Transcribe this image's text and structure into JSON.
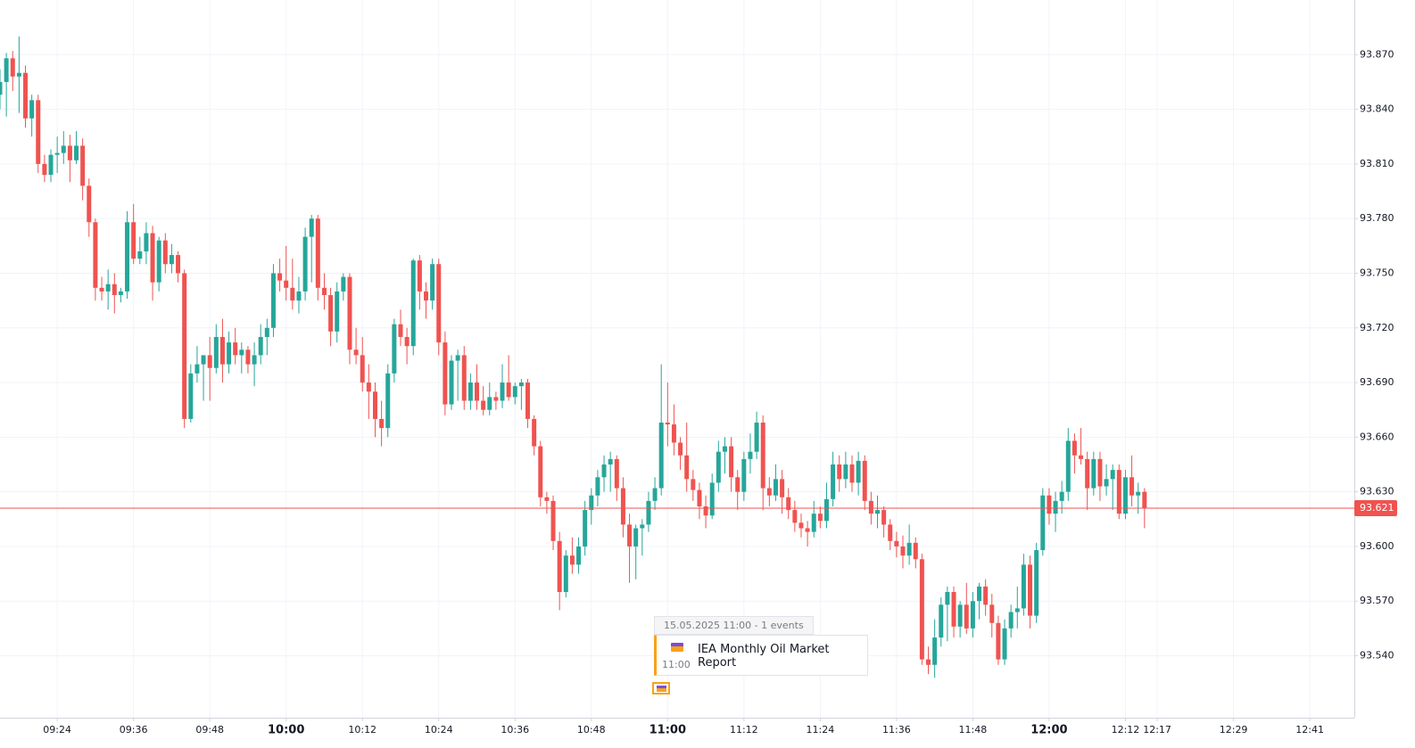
{
  "chart_data": {
    "type": "candlestick",
    "up_color": "#26a69a",
    "down_color": "#ef5350",
    "grid": true,
    "x": [
      "09:15",
      "09:16",
      "09:17",
      "09:18",
      "09:19",
      "09:20",
      "09:21",
      "09:22",
      "09:23",
      "09:24",
      "09:25",
      "09:26",
      "09:27",
      "09:28",
      "09:29",
      "09:30",
      "09:31",
      "09:32",
      "09:33",
      "09:34",
      "09:35",
      "09:36",
      "09:37",
      "09:38",
      "09:39",
      "09:40",
      "09:41",
      "09:42",
      "09:43",
      "09:44",
      "09:45",
      "09:46",
      "09:47",
      "09:48",
      "09:49",
      "09:50",
      "09:51",
      "09:52",
      "09:53",
      "09:54",
      "09:55",
      "09:56",
      "09:57",
      "09:58",
      "09:59",
      "10:00",
      "10:01",
      "10:02",
      "10:03",
      "10:04",
      "10:05",
      "10:06",
      "10:07",
      "10:08",
      "10:09",
      "10:10",
      "10:11",
      "10:12",
      "10:13",
      "10:14",
      "10:15",
      "10:16",
      "10:17",
      "10:18",
      "10:19",
      "10:20",
      "10:21",
      "10:22",
      "10:23",
      "10:24",
      "10:25",
      "10:26",
      "10:27",
      "10:28",
      "10:29",
      "10:30",
      "10:31",
      "10:32",
      "10:33",
      "10:34",
      "10:35",
      "10:36",
      "10:37",
      "10:38",
      "10:39",
      "10:40",
      "10:41",
      "10:42",
      "10:43",
      "10:44",
      "10:45",
      "10:46",
      "10:47",
      "10:48",
      "10:49",
      "10:50",
      "10:51",
      "10:52",
      "10:53",
      "10:54",
      "10:55",
      "10:56",
      "10:57",
      "10:58",
      "10:59",
      "11:00",
      "11:01",
      "11:02",
      "11:03",
      "11:04",
      "11:05",
      "11:06",
      "11:07",
      "11:08",
      "11:09",
      "11:10",
      "11:11",
      "11:12",
      "11:13",
      "11:14",
      "11:15",
      "11:16",
      "11:17",
      "11:18",
      "11:19",
      "11:20",
      "11:21",
      "11:22",
      "11:23",
      "11:24",
      "11:25",
      "11:26",
      "11:27",
      "11:28",
      "11:29",
      "11:30",
      "11:31",
      "11:32",
      "11:33",
      "11:34",
      "11:35",
      "11:36",
      "11:37",
      "11:38",
      "11:39",
      "11:40",
      "11:41",
      "11:42",
      "11:43",
      "11:44",
      "11:45",
      "11:46",
      "11:47",
      "11:48",
      "11:49",
      "11:50",
      "11:51",
      "11:52",
      "11:53",
      "11:54",
      "11:55",
      "11:56",
      "11:57",
      "11:58",
      "11:59",
      "12:00",
      "12:01",
      "12:02",
      "12:03",
      "12:04",
      "12:05",
      "12:06",
      "12:07",
      "12:08",
      "12:09",
      "12:10",
      "12:11",
      "12:12",
      "12:13",
      "12:14",
      "12:15"
    ],
    "candles": [
      [
        93.848,
        93.862,
        93.84,
        93.855
      ],
      [
        93.855,
        93.871,
        93.836,
        93.868
      ],
      [
        93.868,
        93.872,
        93.85,
        93.858
      ],
      [
        93.858,
        93.88,
        93.838,
        93.86
      ],
      [
        93.86,
        93.864,
        93.83,
        93.835
      ],
      [
        93.835,
        93.848,
        93.825,
        93.845
      ],
      [
        93.845,
        93.848,
        93.805,
        93.81
      ],
      [
        93.81,
        93.815,
        93.8,
        93.804
      ],
      [
        93.804,
        93.818,
        93.8,
        93.815
      ],
      [
        93.815,
        93.825,
        93.805,
        93.816
      ],
      [
        93.816,
        93.828,
        93.81,
        93.82
      ],
      [
        93.82,
        93.826,
        93.8,
        93.812
      ],
      [
        93.812,
        93.828,
        93.81,
        93.82
      ],
      [
        93.82,
        93.824,
        93.79,
        93.798
      ],
      [
        93.798,
        93.802,
        93.77,
        93.778
      ],
      [
        93.778,
        93.78,
        93.735,
        93.742
      ],
      [
        93.742,
        93.748,
        93.735,
        93.74
      ],
      [
        93.74,
        93.752,
        93.73,
        93.744
      ],
      [
        93.744,
        93.75,
        93.728,
        93.738
      ],
      [
        93.738,
        93.742,
        93.734,
        93.74
      ],
      [
        93.74,
        93.784,
        93.736,
        93.778
      ],
      [
        93.778,
        93.788,
        93.755,
        93.758
      ],
      [
        93.758,
        93.77,
        93.755,
        93.762
      ],
      [
        93.762,
        93.778,
        93.755,
        93.772
      ],
      [
        93.772,
        93.776,
        93.735,
        93.745
      ],
      [
        93.745,
        93.77,
        93.74,
        93.768
      ],
      [
        93.768,
        93.772,
        93.75,
        93.755
      ],
      [
        93.755,
        93.766,
        93.75,
        93.76
      ],
      [
        93.76,
        93.762,
        93.745,
        93.75
      ],
      [
        93.75,
        93.752,
        93.665,
        93.67
      ],
      [
        93.67,
        93.7,
        93.668,
        93.695
      ],
      [
        93.695,
        93.71,
        93.69,
        93.7
      ],
      [
        93.7,
        93.705,
        93.68,
        93.705
      ],
      [
        93.705,
        93.715,
        93.68,
        93.698
      ],
      [
        93.698,
        93.722,
        93.695,
        93.715
      ],
      [
        93.715,
        93.725,
        93.69,
        93.7
      ],
      [
        93.7,
        93.718,
        93.695,
        93.712
      ],
      [
        93.712,
        93.72,
        93.7,
        93.705
      ],
      [
        93.705,
        93.712,
        93.695,
        93.708
      ],
      [
        93.708,
        93.71,
        93.695,
        93.7
      ],
      [
        93.7,
        93.712,
        93.688,
        93.705
      ],
      [
        93.705,
        93.722,
        93.7,
        93.715
      ],
      [
        93.715,
        93.725,
        93.705,
        93.72
      ],
      [
        93.72,
        93.755,
        93.715,
        93.75
      ],
      [
        93.75,
        93.758,
        93.74,
        93.746
      ],
      [
        93.746,
        93.765,
        93.735,
        93.742
      ],
      [
        93.742,
        93.758,
        93.73,
        93.735
      ],
      [
        93.735,
        93.748,
        93.728,
        93.74
      ],
      [
        93.74,
        93.775,
        93.735,
        93.77
      ],
      [
        93.77,
        93.782,
        93.745,
        93.78
      ],
      [
        93.78,
        93.782,
        93.735,
        93.742
      ],
      [
        93.742,
        93.75,
        93.73,
        93.738
      ],
      [
        93.738,
        93.742,
        93.71,
        93.718
      ],
      [
        93.718,
        93.745,
        93.712,
        93.74
      ],
      [
        93.74,
        93.75,
        93.735,
        93.748
      ],
      [
        93.748,
        93.75,
        93.7,
        93.708
      ],
      [
        93.708,
        93.72,
        93.7,
        93.705
      ],
      [
        93.705,
        93.715,
        93.685,
        93.69
      ],
      [
        93.69,
        93.7,
        93.67,
        93.685
      ],
      [
        93.685,
        93.69,
        93.66,
        93.67
      ],
      [
        93.67,
        93.68,
        93.655,
        93.665
      ],
      [
        93.665,
        93.7,
        93.66,
        93.695
      ],
      [
        93.695,
        93.725,
        93.69,
        93.722
      ],
      [
        93.722,
        93.73,
        93.71,
        93.715
      ],
      [
        93.715,
        93.72,
        93.7,
        93.71
      ],
      [
        93.71,
        93.758,
        93.705,
        93.757
      ],
      [
        93.757,
        93.76,
        93.73,
        93.74
      ],
      [
        93.74,
        93.745,
        93.725,
        93.735
      ],
      [
        93.735,
        93.758,
        93.73,
        93.755
      ],
      [
        93.755,
        93.758,
        93.705,
        93.712
      ],
      [
        93.712,
        93.718,
        93.672,
        93.678
      ],
      [
        93.678,
        93.705,
        93.675,
        93.702
      ],
      [
        93.702,
        93.708,
        93.68,
        93.705
      ],
      [
        93.705,
        93.71,
        93.675,
        93.68
      ],
      [
        93.68,
        93.695,
        93.675,
        93.69
      ],
      [
        93.69,
        93.7,
        93.675,
        93.68
      ],
      [
        93.68,
        93.688,
        93.672,
        93.675
      ],
      [
        93.675,
        93.69,
        93.672,
        93.682
      ],
      [
        93.682,
        93.685,
        93.675,
        93.68
      ],
      [
        93.68,
        93.7,
        93.676,
        93.69
      ],
      [
        93.69,
        93.705,
        93.68,
        93.682
      ],
      [
        93.682,
        93.69,
        93.678,
        93.688
      ],
      [
        93.688,
        93.692,
        93.675,
        93.69
      ],
      [
        93.69,
        93.692,
        93.665,
        93.67
      ],
      [
        93.67,
        93.672,
        93.65,
        93.655
      ],
      [
        93.655,
        93.658,
        93.622,
        93.627
      ],
      [
        93.627,
        93.63,
        93.618,
        93.625
      ],
      [
        93.625,
        93.628,
        93.598,
        93.603
      ],
      [
        93.603,
        93.608,
        93.565,
        93.575
      ],
      [
        93.575,
        93.598,
        93.572,
        93.595
      ],
      [
        93.595,
        93.605,
        93.585,
        93.59
      ],
      [
        93.59,
        93.605,
        93.585,
        93.6
      ],
      [
        93.6,
        93.625,
        93.595,
        93.62
      ],
      [
        93.62,
        93.632,
        93.612,
        93.628
      ],
      [
        93.628,
        93.642,
        93.622,
        93.638
      ],
      [
        93.638,
        93.65,
        93.63,
        93.645
      ],
      [
        93.645,
        93.652,
        93.63,
        93.648
      ],
      [
        93.648,
        93.65,
        93.625,
        93.632
      ],
      [
        93.632,
        93.638,
        93.605,
        93.612
      ],
      [
        93.612,
        93.618,
        93.58,
        93.6
      ],
      [
        93.6,
        93.612,
        93.582,
        93.61
      ],
      [
        93.61,
        93.615,
        93.595,
        93.612
      ],
      [
        93.612,
        93.63,
        93.608,
        93.625
      ],
      [
        93.625,
        93.638,
        93.62,
        93.632
      ],
      [
        93.632,
        93.7,
        93.628,
        93.668
      ],
      [
        93.668,
        93.69,
        93.655,
        93.667
      ],
      [
        93.667,
        93.678,
        93.65,
        93.657
      ],
      [
        93.657,
        93.66,
        93.642,
        93.65
      ],
      [
        93.65,
        93.668,
        93.63,
        93.637
      ],
      [
        93.637,
        93.642,
        93.625,
        93.631
      ],
      [
        93.631,
        93.635,
        93.615,
        93.622
      ],
      [
        93.622,
        93.628,
        93.61,
        93.617
      ],
      [
        93.617,
        93.64,
        93.615,
        93.635
      ],
      [
        93.635,
        93.658,
        93.63,
        93.652
      ],
      [
        93.652,
        93.66,
        93.64,
        93.655
      ],
      [
        93.655,
        93.66,
        93.63,
        93.638
      ],
      [
        93.638,
        93.642,
        93.62,
        93.63
      ],
      [
        93.63,
        93.652,
        93.625,
        93.648
      ],
      [
        93.648,
        93.662,
        93.64,
        93.652
      ],
      [
        93.652,
        93.674,
        93.648,
        93.668
      ],
      [
        93.668,
        93.672,
        93.62,
        93.632
      ],
      [
        93.632,
        93.638,
        93.622,
        93.628
      ],
      [
        93.628,
        93.645,
        93.625,
        93.637
      ],
      [
        93.637,
        93.642,
        93.618,
        93.627
      ],
      [
        93.627,
        93.632,
        93.615,
        93.62
      ],
      [
        93.62,
        93.625,
        93.608,
        93.613
      ],
      [
        93.613,
        93.618,
        93.605,
        93.61
      ],
      [
        93.61,
        93.614,
        93.6,
        93.608
      ],
      [
        93.608,
        93.625,
        93.605,
        93.618
      ],
      [
        93.618,
        93.622,
        93.61,
        93.614
      ],
      [
        93.614,
        93.635,
        93.61,
        93.626
      ],
      [
        93.626,
        93.652,
        93.622,
        93.645
      ],
      [
        93.645,
        93.65,
        93.63,
        93.637
      ],
      [
        93.637,
        93.652,
        93.632,
        93.645
      ],
      [
        93.645,
        93.65,
        93.63,
        93.635
      ],
      [
        93.635,
        93.652,
        93.628,
        93.647
      ],
      [
        93.647,
        93.65,
        93.62,
        93.625
      ],
      [
        93.625,
        93.63,
        93.612,
        93.618
      ],
      [
        93.618,
        93.628,
        93.61,
        93.62
      ],
      [
        93.62,
        93.622,
        93.605,
        93.612
      ],
      [
        93.612,
        93.615,
        93.598,
        93.603
      ],
      [
        93.603,
        93.608,
        93.594,
        93.6
      ],
      [
        93.6,
        93.606,
        93.588,
        93.595
      ],
      [
        93.595,
        93.612,
        93.59,
        93.602
      ],
      [
        93.602,
        93.605,
        93.588,
        93.593
      ],
      [
        93.593,
        93.596,
        93.535,
        93.538
      ],
      [
        93.538,
        93.545,
        93.53,
        93.535
      ],
      [
        93.535,
        93.56,
        93.528,
        93.55
      ],
      [
        93.55,
        93.572,
        93.545,
        93.568
      ],
      [
        93.568,
        93.578,
        93.548,
        93.575
      ],
      [
        93.575,
        93.578,
        93.55,
        93.556
      ],
      [
        93.556,
        93.57,
        93.55,
        93.568
      ],
      [
        93.568,
        93.58,
        93.552,
        93.555
      ],
      [
        93.555,
        93.575,
        93.55,
        93.57
      ],
      [
        93.57,
        93.58,
        93.56,
        93.578
      ],
      [
        93.578,
        93.582,
        93.562,
        93.568
      ],
      [
        93.568,
        93.574,
        93.55,
        93.558
      ],
      [
        93.558,
        93.562,
        93.535,
        93.538
      ],
      [
        93.538,
        93.56,
        93.535,
        93.555
      ],
      [
        93.555,
        93.568,
        93.55,
        93.564
      ],
      [
        93.564,
        93.578,
        93.555,
        93.566
      ],
      [
        93.566,
        93.596,
        93.562,
        93.59
      ],
      [
        93.59,
        93.595,
        93.555,
        93.562
      ],
      [
        93.562,
        93.602,
        93.558,
        93.598
      ],
      [
        93.598,
        93.632,
        93.595,
        93.628
      ],
      [
        93.628,
        93.632,
        93.612,
        93.618
      ],
      [
        93.618,
        93.63,
        93.608,
        93.625
      ],
      [
        93.625,
        93.636,
        93.618,
        93.63
      ],
      [
        93.63,
        93.665,
        93.625,
        93.658
      ],
      [
        93.658,
        93.662,
        93.64,
        93.65
      ],
      [
        93.65,
        93.665,
        93.645,
        93.648
      ],
      [
        93.648,
        93.652,
        93.62,
        93.632
      ],
      [
        93.632,
        93.652,
        93.628,
        93.648
      ],
      [
        93.648,
        93.652,
        93.625,
        93.633
      ],
      [
        93.633,
        93.645,
        93.628,
        93.637
      ],
      [
        93.637,
        93.645,
        93.62,
        93.642
      ],
      [
        93.642,
        93.645,
        93.615,
        93.618
      ],
      [
        93.618,
        93.642,
        93.615,
        93.638
      ],
      [
        93.638,
        93.65,
        93.622,
        93.628
      ],
      [
        93.628,
        93.635,
        93.618,
        93.63
      ],
      [
        93.63,
        93.632,
        93.61,
        93.621
      ]
    ],
    "xlim": [
      "09:15",
      "12:48"
    ],
    "xticks": [
      "09:24",
      "09:36",
      "09:48",
      "10:00",
      "10:12",
      "10:24",
      "10:36",
      "10:48",
      "11:00",
      "11:12",
      "11:24",
      "11:36",
      "11:48",
      "12:00",
      "12:12",
      "12:17",
      "12:29",
      "12:41"
    ],
    "ylim": [
      93.506,
      93.9
    ],
    "yticks": [
      {
        "value": 93.54,
        "label": "93.540"
      },
      {
        "value": 93.57,
        "label": "93.570"
      },
      {
        "value": 93.6,
        "label": "93.600"
      },
      {
        "value": 93.63,
        "label": "93.630"
      },
      {
        "value": 93.66,
        "label": "93.660"
      },
      {
        "value": 93.69,
        "label": "93.690"
      },
      {
        "value": 93.72,
        "label": "93.720"
      },
      {
        "value": 93.75,
        "label": "93.750"
      },
      {
        "value": 93.78,
        "label": "93.780"
      },
      {
        "value": 93.81,
        "label": "93.810"
      },
      {
        "value": 93.84,
        "label": "93.840"
      },
      {
        "value": 93.87,
        "label": "93.870"
      }
    ],
    "price_line": {
      "value": 93.621,
      "color": "#ef5350"
    },
    "events": [
      {
        "header": "15.05.2025 11:00 - 1 events",
        "title": "IEA Monthly Oil Market Report",
        "time": "11:00"
      }
    ]
  }
}
